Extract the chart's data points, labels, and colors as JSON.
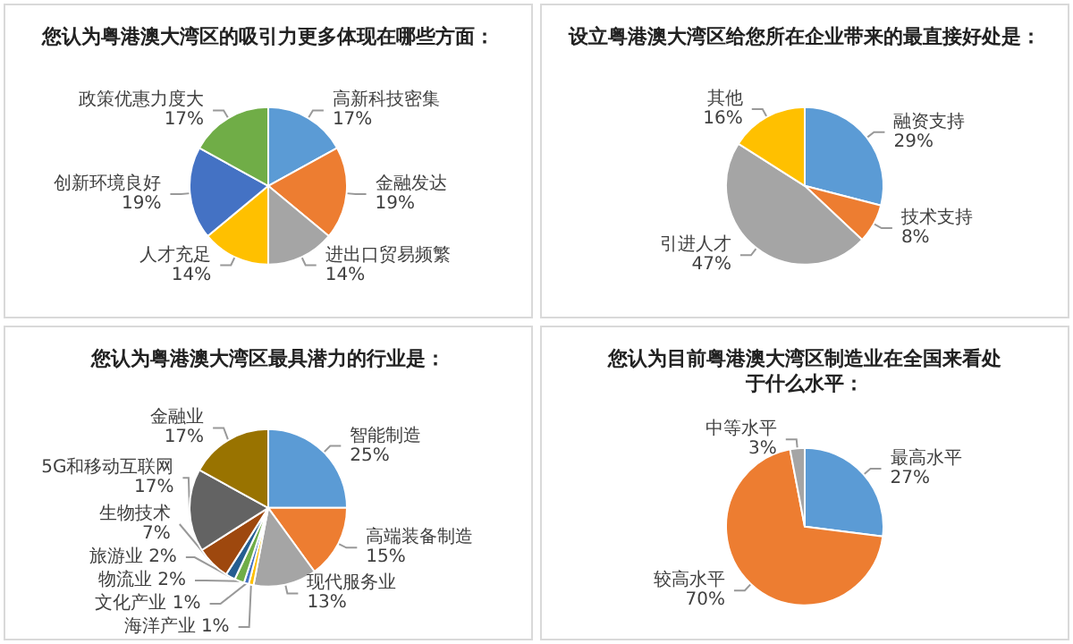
{
  "chart_data": [
    {
      "type": "pie",
      "title": "您认为粤港澳大湾区的吸引力更多体现在哪些方面：",
      "categories": [
        "高新科技密集",
        "金融发达",
        "进出口贸易频繁",
        "人才充足",
        "创新环境良好",
        "政策优惠力度大"
      ],
      "values": [
        17,
        19,
        14,
        14,
        19,
        17
      ],
      "value_labels": [
        "17%",
        "19%",
        "14%",
        "14%",
        "19%",
        "17%"
      ],
      "colors": [
        "#5b9bd5",
        "#ed7d31",
        "#a5a5a5",
        "#ffc000",
        "#4472c4",
        "#70ad47"
      ]
    },
    {
      "type": "pie",
      "title": "设立粤港澳大湾区给您所在企业带来的最直接好处是：",
      "categories": [
        "融资支持",
        "技术支持",
        "引进人才",
        "其他"
      ],
      "values": [
        29,
        8,
        47,
        16
      ],
      "value_labels": [
        "29%",
        "8%",
        "47%",
        "16%"
      ],
      "colors": [
        "#5b9bd5",
        "#ed7d31",
        "#a5a5a5",
        "#ffc000"
      ]
    },
    {
      "type": "pie",
      "title": "您认为粤港澳大湾区最具潜力的行业是：",
      "categories": [
        "智能制造",
        "高端装备制造",
        "现代服务业",
        "海洋产业",
        "文化产业",
        "物流业",
        "旅游业",
        "生物技术",
        "5G和移动互联网",
        "金融业"
      ],
      "values": [
        25,
        15,
        13,
        1,
        1,
        2,
        2,
        7,
        17,
        17
      ],
      "value_labels": [
        "25%",
        "15%",
        "13%",
        "1%",
        "1%",
        "2%",
        "2%",
        "7%",
        "17%",
        "17%"
      ],
      "colors": [
        "#5b9bd5",
        "#ed7d31",
        "#a5a5a5",
        "#ffc000",
        "#4472c4",
        "#70ad47",
        "#255e91",
        "#9e480e",
        "#636363",
        "#997300"
      ]
    },
    {
      "type": "pie",
      "title": "您认为目前粤港澳大湾区制造业在全国来看处于什么水平：",
      "categories": [
        "最高水平",
        "较高水平",
        "中等水平"
      ],
      "values": [
        27,
        70,
        3
      ],
      "value_labels": [
        "27%",
        "70%",
        "3%"
      ],
      "colors": [
        "#5b9bd5",
        "#ed7d31",
        "#a5a5a5"
      ]
    }
  ]
}
